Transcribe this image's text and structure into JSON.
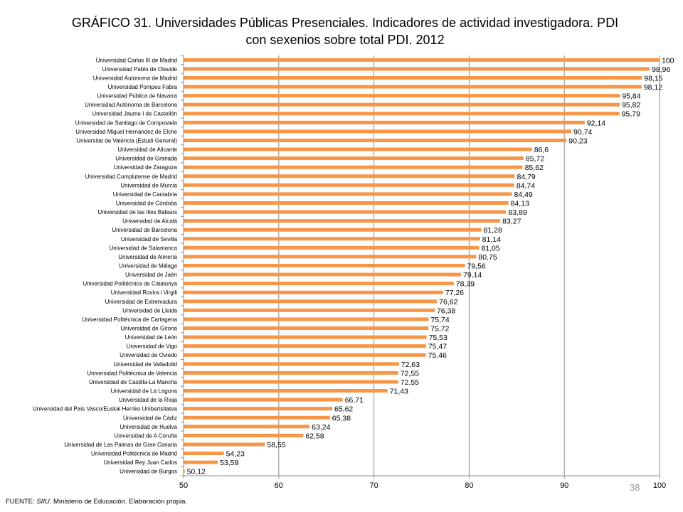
{
  "page": {
    "title_line1": "GRÁFICO 31. Universidades Públicas Presenciales. Indicadores de actividad investigadora. PDI",
    "title_line2": "con sexenios sobre total PDI. 2012",
    "source_prefix": "FUENTE: ",
    "source_italic": "SIIU",
    "source_rest": ". Ministerio de Educación. Elaboración propia.",
    "page_number": "38"
  },
  "chart_data": {
    "type": "bar",
    "orientation": "horizontal",
    "title": "GRÁFICO 31. Universidades Públicas Presenciales. Indicadores de actividad investigadora. PDI con sexenios sobre total PDI. 2012",
    "xlim": [
      50,
      100
    ],
    "x_ticks": [
      "50",
      "60",
      "70",
      "80",
      "90",
      "100"
    ],
    "grid": "vertical",
    "bar_color": "#f79646",
    "categories": [
      "Universidad Carlos III de Madrid",
      "Universidad Pablo de Olavide",
      "Universidad Autónoma de Madrid",
      "Universidad Pompeu Fabra",
      "Universidad Pública de Navarra",
      "Universidad Autónoma de Barcelona",
      "Universidad Jaume I de Castellón",
      "Universidad de Santiago de Compostela",
      "Universidad Miguel Hernández de Elche",
      "Universitat de València (Estudi General)",
      "Universidad de Alicante",
      "Universidad de Granada",
      "Universidad de Zaragoza",
      "Universidad Complutense de Madrid",
      "Universidad de Murcia",
      "Universidad de Cantabria",
      "Universidad de Córdoba",
      "Universidad de las Illes Balears",
      "Universidad de Alcalá",
      "Universidad de Barcelona",
      "Universidad de Sevilla",
      "Universidad de Salamanca",
      "Universidad de Almería",
      "Universidad de Málaga",
      "Universidad de Jaén",
      "Universidad Politécnica de Catalunya",
      "Universidad Rovira i Virgili",
      "Universidad de Extremadura",
      "Universidad de Lleida",
      "Universidad Politécnica de Cartagena",
      "Universidad de Girona",
      "Universidad de León",
      "Universidad de Vigo",
      "Universidad de Oviedo",
      "Universidad de Valladolid",
      "Universidad Politécnica de Valencia",
      "Universidad de Castilla-La Mancha",
      "Universidad de La Laguna",
      "Universidad de la Rioja",
      "Universidad del País Vasco/Euskal Herriko Unibertsitatea",
      "Universidad de Cádiz",
      "Universidad de Huelva",
      "Universidad de A Coruña",
      "Universidad de Las Palmas de Gran Canaria",
      "Universidad Politécnica de Madrid",
      "Universidad Rey Juan Carlos",
      "Universidad de Burgos"
    ],
    "values": [
      100,
      98.96,
      98.15,
      98.12,
      95.84,
      95.82,
      95.79,
      92.14,
      90.74,
      90.23,
      86.6,
      85.72,
      85.62,
      84.79,
      84.74,
      84.49,
      84.13,
      83.89,
      83.27,
      81.28,
      81.14,
      81.05,
      80.75,
      79.56,
      79.14,
      78.39,
      77.26,
      76.62,
      76.38,
      75.74,
      75.72,
      75.53,
      75.47,
      75.46,
      72.63,
      72.55,
      72.55,
      71.43,
      66.71,
      65.62,
      65.38,
      63.24,
      62.58,
      58.55,
      54.23,
      53.59,
      50.12
    ],
    "value_labels": [
      "100",
      "98,96",
      "98,15",
      "98,12",
      "95,84",
      "95,82",
      "95,79",
      "92,14",
      "90,74",
      "90,23",
      "86,6",
      "85,72",
      "85,62",
      "84,79",
      "84,74",
      "84,49",
      "84,13",
      "83,89",
      "83,27",
      "81,28",
      "81,14",
      "81,05",
      "80,75",
      "79,56",
      "79,14",
      "78,39",
      "77,26",
      "76,62",
      "76,38",
      "75,74",
      "75,72",
      "75,53",
      "75,47",
      "75,46",
      "72,63",
      "72,55",
      "72,55",
      "71,43",
      "66,71",
      "65,62",
      "65,38",
      "63,24",
      "62,58",
      "58,55",
      "54,23",
      "53,59",
      "50,12"
    ]
  }
}
